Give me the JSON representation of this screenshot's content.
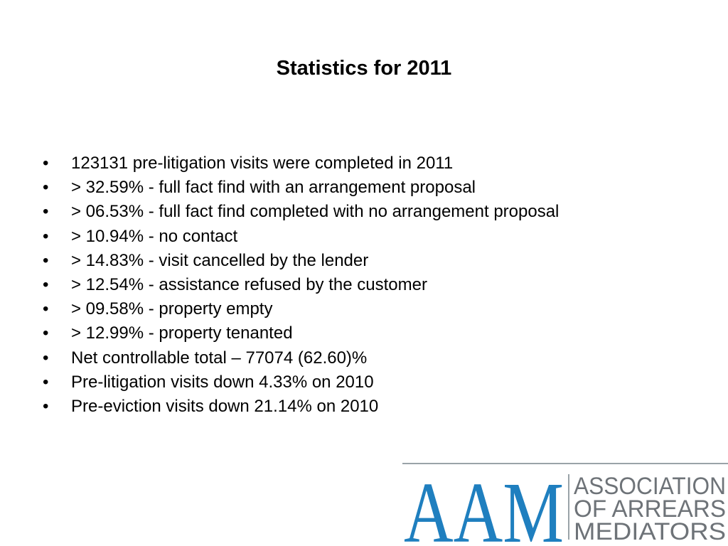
{
  "slide": {
    "title": "Statistics for 2011",
    "bullet_symbol": "•",
    "bullets": [
      "123131 pre-litigation visits were completed in 2011",
      "> 32.59% - full fact find with an arrangement proposal",
      "> 06.53% - full fact find completed with no arrangement proposal",
      "> 10.94% - no contact",
      "> 14.83% - visit cancelled by the lender",
      "> 12.54% - assistance refused by the customer",
      "> 09.58% - property empty",
      "> 12.99% - property tenanted",
      "Net controllable total – 77074 (62.60)%",
      "Pre-litigation visits down 4.33% on 2010",
      "Pre-eviction visits down 21.14% on 2010"
    ]
  },
  "logo": {
    "initials": "AAM",
    "line1": "ASSOCIATION",
    "line2": "OF ARREARS",
    "line3": "MEDIATORS",
    "initials_color": "#1f7fbf",
    "text_color": "#6e7378",
    "rule_color": "#9aa3a8"
  }
}
